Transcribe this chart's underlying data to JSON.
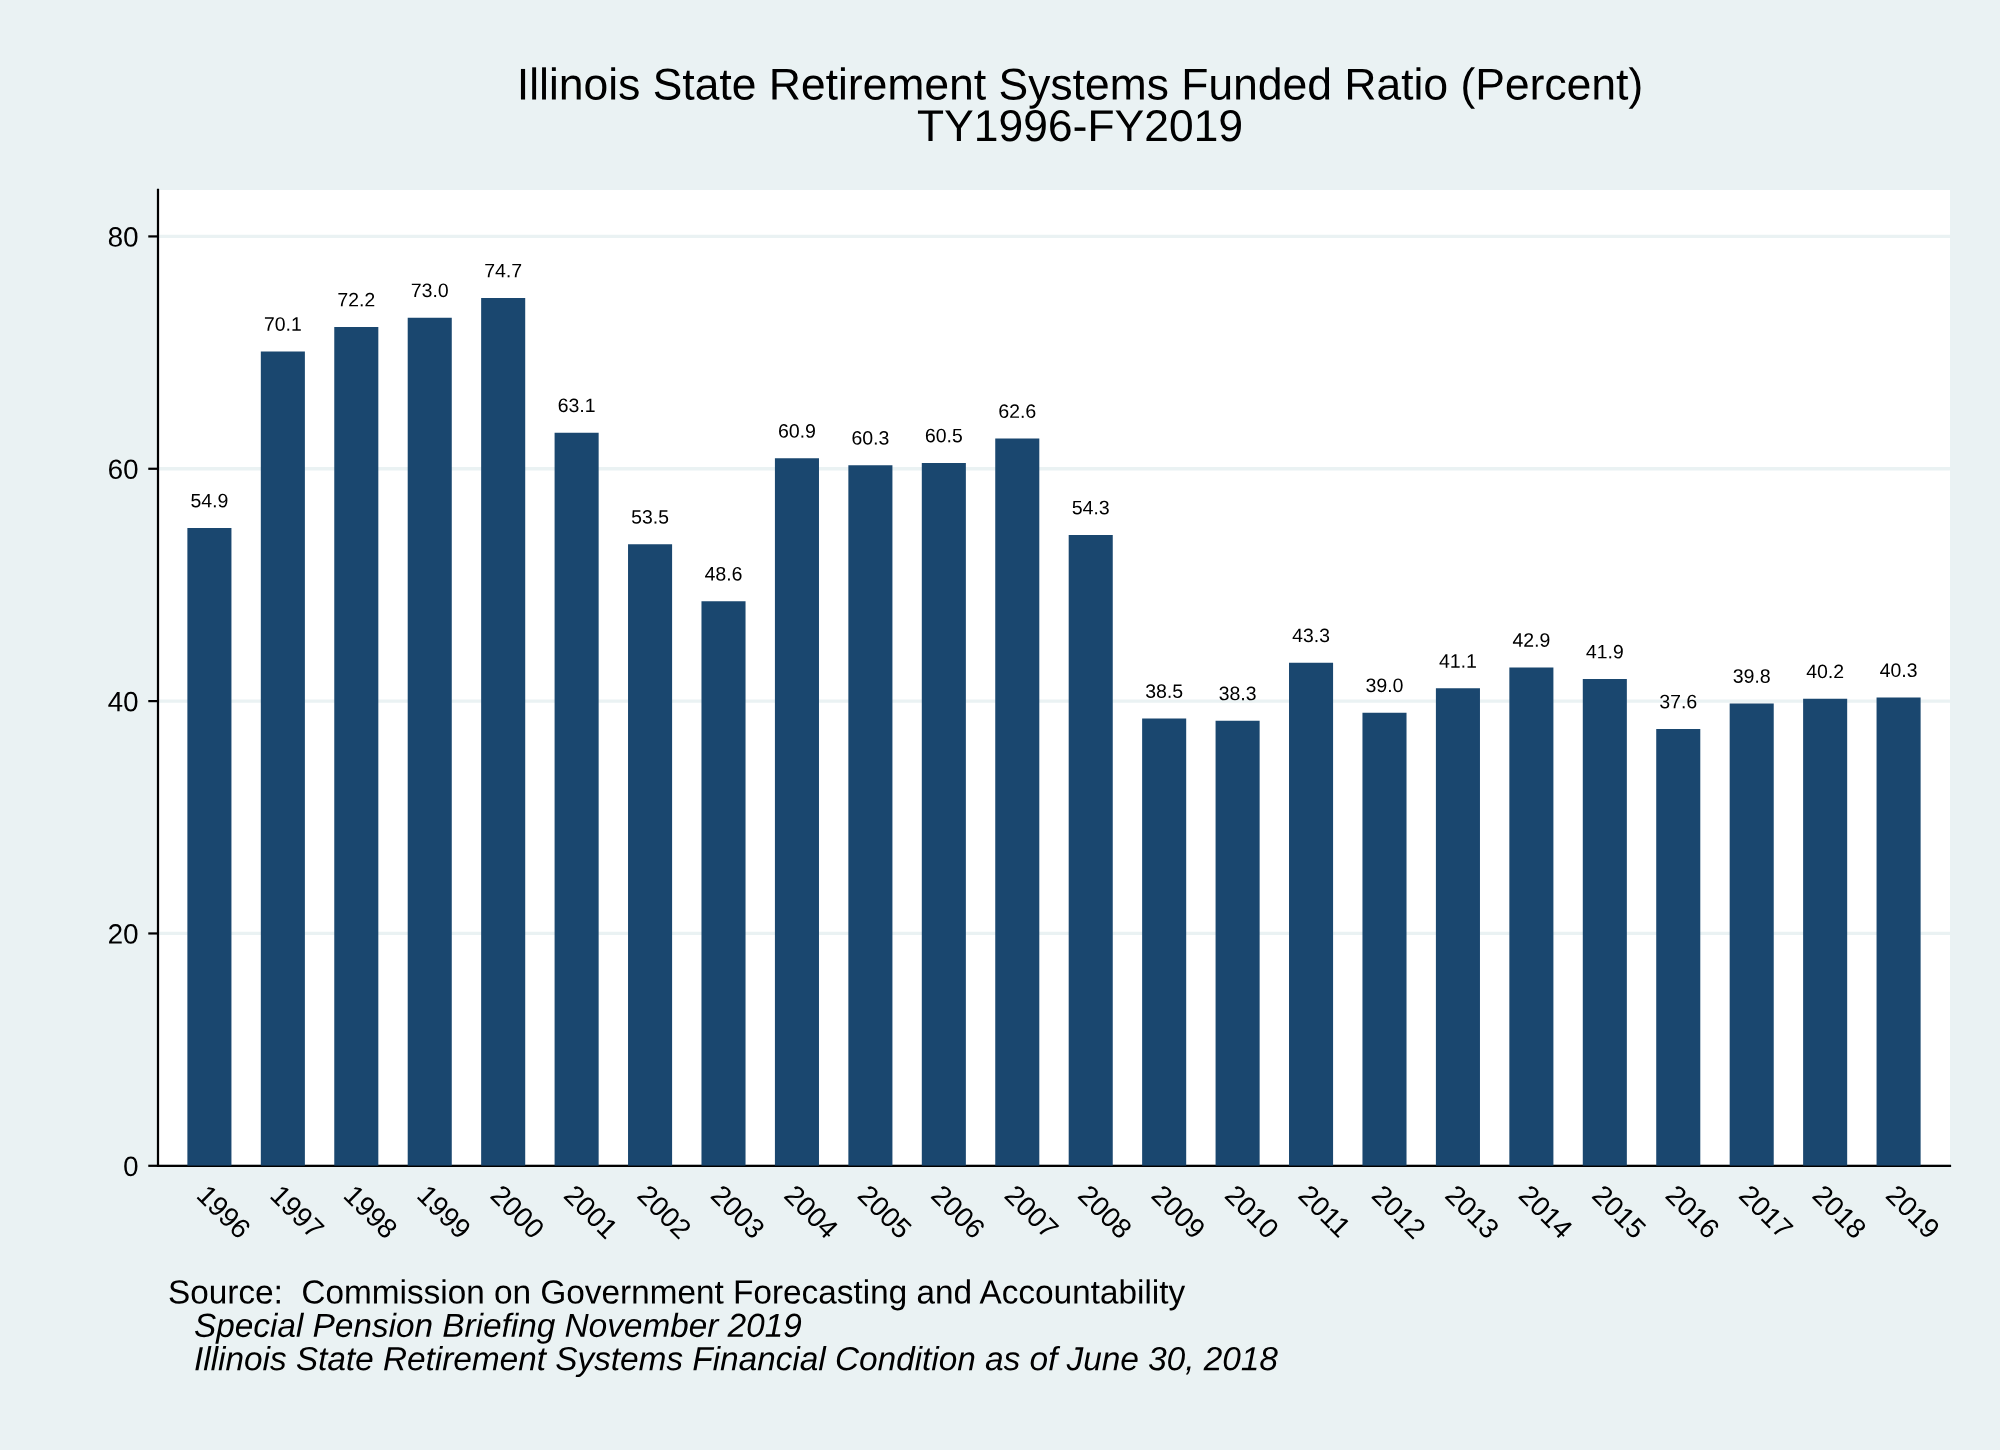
{
  "chart_data": {
    "type": "bar",
    "title": "Illinois State Retirement Systems Funded Ratio (Percent)",
    "subtitle": "TY1996-FY2019",
    "categories": [
      "1996",
      "1997",
      "1998",
      "1999",
      "2000",
      "2001",
      "2002",
      "2003",
      "2004",
      "2005",
      "2006",
      "2007",
      "2008",
      "2009",
      "2010",
      "2011",
      "2012",
      "2013",
      "2014",
      "2015",
      "2016",
      "2017",
      "2018",
      "2019"
    ],
    "values": [
      54.9,
      70.1,
      72.2,
      73.0,
      74.7,
      63.1,
      53.5,
      48.6,
      60.9,
      60.3,
      60.5,
      62.6,
      54.3,
      38.5,
      38.3,
      43.3,
      39.0,
      41.1,
      42.9,
      41.9,
      37.6,
      39.8,
      40.2,
      40.3
    ],
    "value_labels": [
      "54.9",
      "70.1",
      "72.2",
      "73.0",
      "74.7",
      "63.1",
      "53.5",
      "48.6",
      "60.9",
      "60.3",
      "60.5",
      "62.6",
      "54.3",
      "38.5",
      "38.3",
      "43.3",
      "39.0",
      "41.1",
      "42.9",
      "41.9",
      "37.6",
      "39.8",
      "40.2",
      "40.3"
    ],
    "color": "#1a476f",
    "ylim": [
      0,
      84
    ],
    "yticks": [
      0,
      20,
      40,
      60,
      80
    ],
    "grid": "y",
    "legend": false,
    "annotations": [
      "Source:  Commission on Government Forecasting and Accountability",
      "Special Pension Briefing November 2019",
      "Illinois State Retirement Systems Financial Condition as of June 30, 2018"
    ]
  }
}
